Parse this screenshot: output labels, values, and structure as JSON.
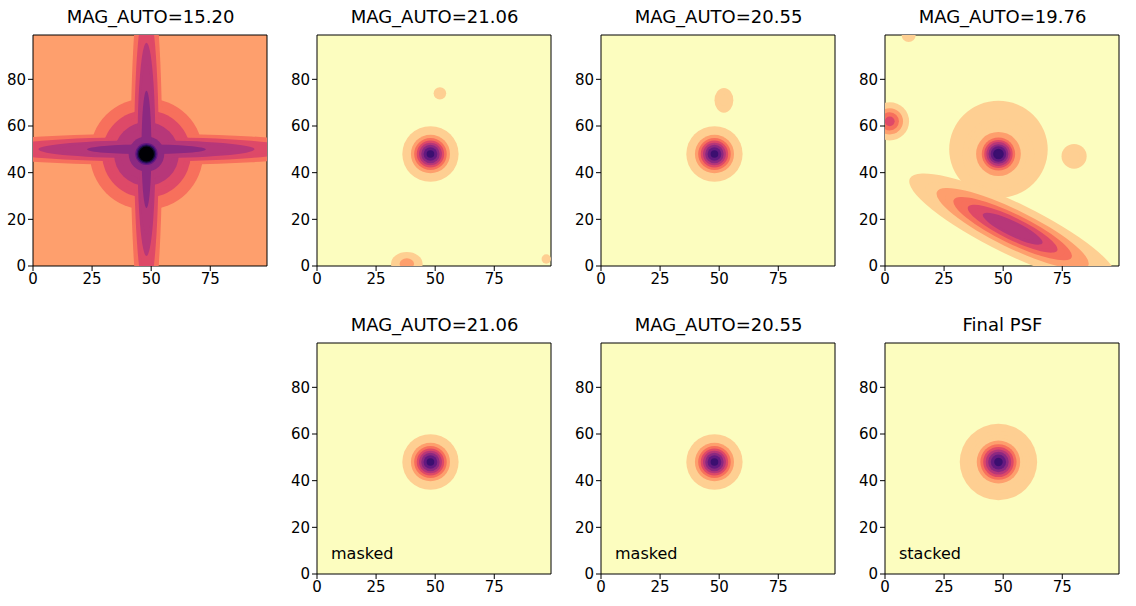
{
  "chart_data": [
    {
      "type": "image",
      "title": "MAG_AUTO=15.20",
      "xlim": [
        0,
        99
      ],
      "ylim": [
        0,
        99
      ],
      "xticks": [
        0,
        25,
        50,
        75
      ],
      "yticks": [
        0,
        20,
        40,
        60,
        80
      ],
      "background": 0.2,
      "sources": [
        {
          "x": 48,
          "y": 48,
          "sx": 18,
          "sy": 18,
          "angle": 0,
          "peak": 0.6
        },
        {
          "x": 48,
          "y": 50,
          "sx": 60,
          "sy": 5,
          "angle": 0,
          "peak": 0.6
        },
        {
          "x": 48,
          "y": 50,
          "sx": 5,
          "sy": 60,
          "angle": 0,
          "peak": 0.6
        },
        {
          "x": 48,
          "y": 48,
          "sx": 4,
          "sy": 4,
          "angle": 0,
          "peak": 1.3
        }
      ]
    },
    {
      "type": "image",
      "title": "MAG_AUTO=21.06",
      "xlim": [
        0,
        99
      ],
      "ylim": [
        0,
        99
      ],
      "xticks": [
        0,
        25,
        50,
        75
      ],
      "yticks": [
        0,
        20,
        40,
        60,
        80
      ],
      "background": 0,
      "sources": [
        {
          "x": 48,
          "y": 48,
          "sx": 8,
          "sy": 8,
          "angle": 0,
          "peak": 0.15
        },
        {
          "x": 48,
          "y": 48,
          "sx": 4.5,
          "sy": 4.5,
          "angle": 0,
          "peak": 0.8
        },
        {
          "x": 52,
          "y": 74,
          "sx": 2,
          "sy": 2,
          "angle": 0,
          "peak": 0.12
        },
        {
          "x": 38,
          "y": 1,
          "sx": 4,
          "sy": 3,
          "angle": 0,
          "peak": 0.2
        },
        {
          "x": 97,
          "y": 3,
          "sx": 1.5,
          "sy": 1.5,
          "angle": 0,
          "peak": 0.12
        }
      ]
    },
    {
      "type": "image",
      "title": "MAG_AUTO=20.55",
      "xlim": [
        0,
        99
      ],
      "ylim": [
        0,
        99
      ],
      "xticks": [
        0,
        25,
        50,
        75
      ],
      "yticks": [
        0,
        20,
        40,
        60,
        80
      ],
      "background": 0,
      "sources": [
        {
          "x": 48,
          "y": 48,
          "sx": 8,
          "sy": 8,
          "angle": 0,
          "peak": 0.15
        },
        {
          "x": 48,
          "y": 48,
          "sx": 4.5,
          "sy": 4.5,
          "angle": 0,
          "peak": 0.8
        },
        {
          "x": 52,
          "y": 71,
          "sx": 3,
          "sy": 4,
          "angle": 0,
          "peak": 0.12
        }
      ]
    },
    {
      "type": "image",
      "title": "MAG_AUTO=19.76",
      "xlim": [
        0,
        99
      ],
      "ylim": [
        0,
        99
      ],
      "xticks": [
        0,
        25,
        50,
        75
      ],
      "yticks": [
        0,
        20,
        40,
        60,
        80
      ],
      "background": 0,
      "sources": [
        {
          "x": 48,
          "y": 50,
          "sx": 14,
          "sy": 14,
          "angle": 0,
          "peak": 0.15
        },
        {
          "x": 48,
          "y": 48,
          "sx": 8,
          "sy": 8,
          "angle": 0,
          "peak": 0.3
        },
        {
          "x": 48,
          "y": 48,
          "sx": 4.5,
          "sy": 4.5,
          "angle": 0,
          "peak": 0.85
        },
        {
          "x": 54,
          "y": 16,
          "sx": 22,
          "sy": 5,
          "angle": -26,
          "peak": 0.55
        },
        {
          "x": 2,
          "y": 62,
          "sx": 4,
          "sy": 4,
          "angle": 0,
          "peak": 0.4
        },
        {
          "x": 80,
          "y": 47,
          "sx": 4,
          "sy": 4,
          "angle": 0,
          "peak": 0.12
        },
        {
          "x": 10,
          "y": 99,
          "sx": 2,
          "sy": 2,
          "angle": 0,
          "peak": 0.15
        }
      ]
    },
    {
      "type": "image",
      "title": "MAG_AUTO=21.06",
      "xlim": [
        0,
        99
      ],
      "ylim": [
        0,
        99
      ],
      "xticks": [
        0,
        25,
        50,
        75
      ],
      "yticks": [
        0,
        20,
        40,
        60,
        80
      ],
      "background": 0,
      "annotation": "masked",
      "sources": [
        {
          "x": 48,
          "y": 48,
          "sx": 8,
          "sy": 8,
          "angle": 0,
          "peak": 0.15
        },
        {
          "x": 48,
          "y": 48,
          "sx": 4.5,
          "sy": 4.5,
          "angle": 0,
          "peak": 0.8
        }
      ]
    },
    {
      "type": "image",
      "title": "MAG_AUTO=20.55",
      "xlim": [
        0,
        99
      ],
      "ylim": [
        0,
        99
      ],
      "xticks": [
        0,
        25,
        50,
        75
      ],
      "yticks": [
        0,
        20,
        40,
        60,
        80
      ],
      "background": 0,
      "annotation": "masked",
      "sources": [
        {
          "x": 48,
          "y": 48,
          "sx": 8,
          "sy": 8,
          "angle": 0,
          "peak": 0.15
        },
        {
          "x": 48,
          "y": 48,
          "sx": 4.5,
          "sy": 4.5,
          "angle": 0,
          "peak": 0.8
        }
      ]
    },
    {
      "type": "image",
      "title": "Final PSF",
      "xlim": [
        0,
        99
      ],
      "ylim": [
        0,
        99
      ],
      "xticks": [
        0,
        25,
        50,
        75
      ],
      "yticks": [
        0,
        20,
        40,
        60,
        80
      ],
      "background": 0,
      "annotation": "stacked",
      "sources": [
        {
          "x": 48,
          "y": 48,
          "sx": 11,
          "sy": 11,
          "angle": 0,
          "peak": 0.15
        },
        {
          "x": 48,
          "y": 48,
          "sx": 7,
          "sy": 7,
          "angle": 0,
          "peak": 0.3
        },
        {
          "x": 48,
          "y": 48,
          "sx": 5,
          "sy": 5,
          "angle": 0,
          "peak": 0.8
        }
      ]
    }
  ]
}
